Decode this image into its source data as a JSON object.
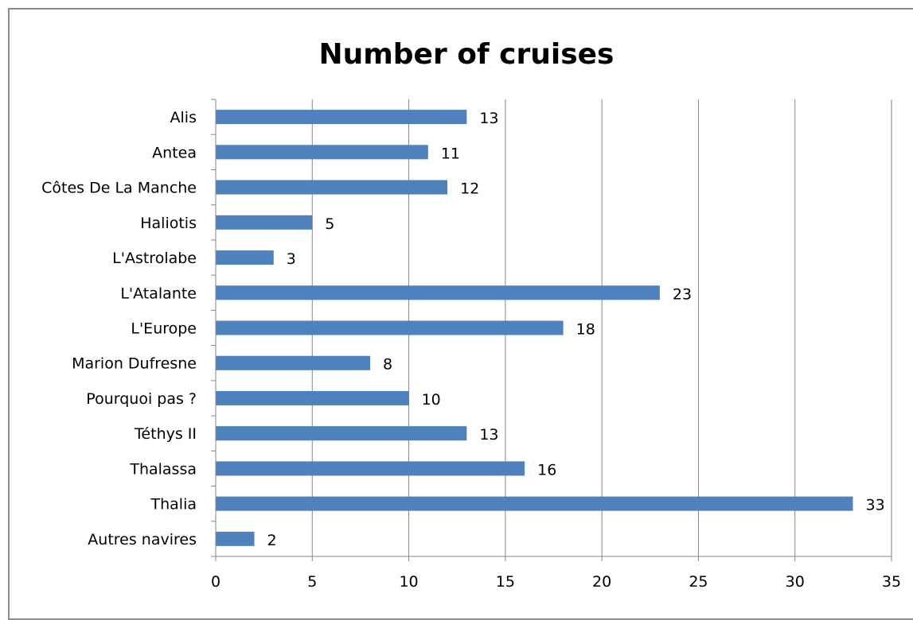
{
  "chart_data": {
    "type": "bar",
    "orientation": "horizontal",
    "title": "Number of cruises",
    "xlabel": "",
    "ylabel": "",
    "categories": [
      "Alis",
      "Antea",
      "Côtes De La Manche",
      "Haliotis",
      "L'Astrolabe",
      "L'Atalante",
      "L'Europe",
      "Marion Dufresne",
      "Pourquoi pas ?",
      "Téthys II",
      "Thalassa",
      "Thalia",
      "Autres navires"
    ],
    "values": [
      13,
      11,
      12,
      5,
      3,
      23,
      18,
      8,
      10,
      13,
      16,
      33,
      2
    ],
    "xlim": [
      0,
      35
    ],
    "xticks": [
      0,
      5,
      10,
      15,
      20,
      25,
      30,
      35
    ],
    "gridlines": "vertical",
    "legend": "none",
    "data_labels": true,
    "bar_color": "#4f81bd"
  }
}
